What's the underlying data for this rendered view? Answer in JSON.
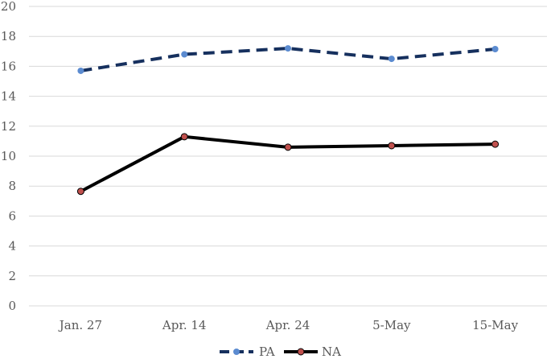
{
  "chart_data": {
    "type": "line",
    "title": "",
    "xlabel": "",
    "ylabel": "",
    "categories": [
      "Jan. 27",
      "Apr. 14",
      "Apr. 24",
      "5-May",
      "15-May"
    ],
    "ylim": [
      0,
      20
    ],
    "yticks": [
      0,
      2,
      4,
      6,
      8,
      10,
      12,
      14,
      16,
      18,
      20
    ],
    "grid": "horizontal",
    "legend_position": "bottom",
    "series": [
      {
        "name": "PA",
        "values": [
          15.7,
          16.8,
          17.2,
          16.5,
          17.15
        ],
        "line_color": "#16305e",
        "marker_color": "#5b8bd0",
        "line_style": "dashed"
      },
      {
        "name": "NA",
        "values": [
          7.65,
          11.3,
          10.6,
          10.7,
          10.8
        ],
        "line_color": "#000000",
        "marker_color": "#c0504d",
        "line_style": "solid"
      }
    ]
  }
}
